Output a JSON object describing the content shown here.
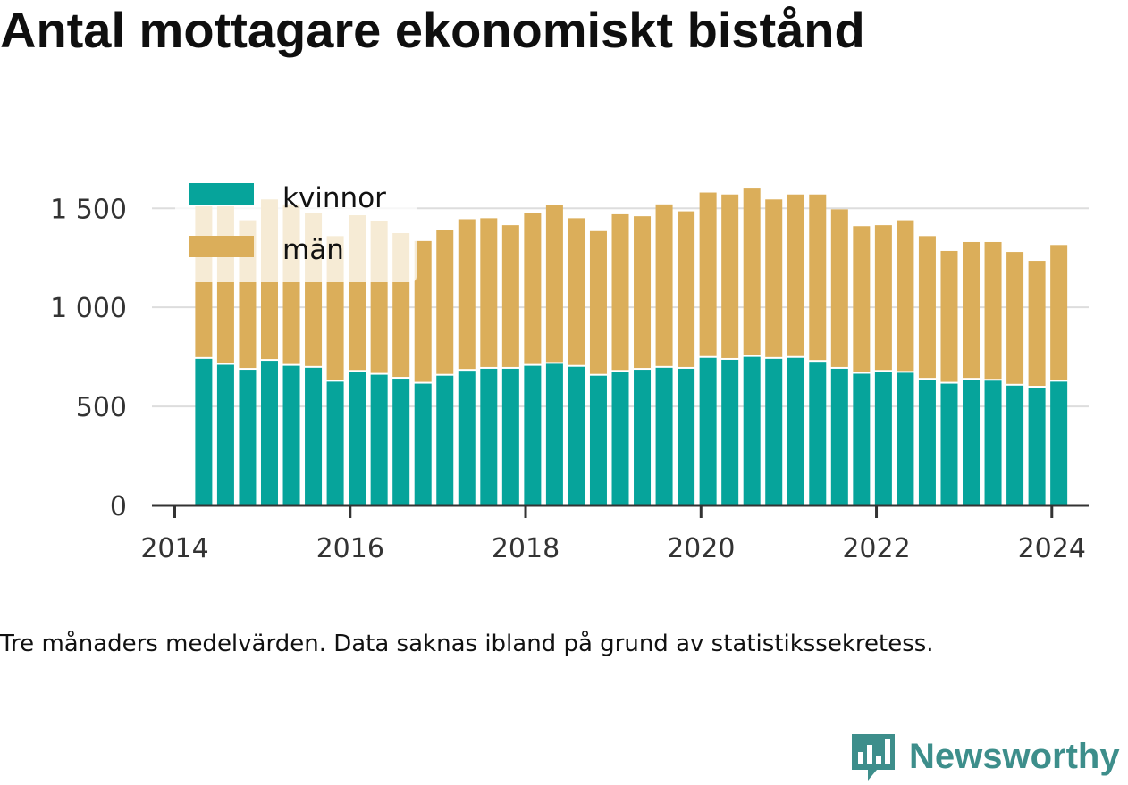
{
  "title": "Antal mottagare ekonomiskt bistånd",
  "note": "Tre månaders medelvärden. Data saknas ibland på grund av statistikssekretess.",
  "logo": {
    "text": "Newsworthy",
    "icon": "newsworthy-chart-bubble-icon"
  },
  "colors": {
    "kvinnor": "#06a49b",
    "man": "#dbae5a",
    "grid": "#dddddd",
    "axis": "#333333",
    "text": "#111111",
    "brand": "#3d8e8b"
  },
  "chart_data": {
    "type": "bar",
    "stacked": true,
    "x_unit": "year",
    "x": [
      2014.33,
      2014.58,
      2014.83,
      2015.08,
      2015.33,
      2015.58,
      2015.83,
      2016.08,
      2016.33,
      2016.58,
      2016.83,
      2017.08,
      2017.33,
      2017.58,
      2017.83,
      2018.08,
      2018.33,
      2018.58,
      2018.83,
      2019.08,
      2019.33,
      2019.58,
      2019.83,
      2020.08,
      2020.33,
      2020.58,
      2020.83,
      2021.08,
      2021.33,
      2021.58,
      2021.83,
      2022.08,
      2022.33,
      2022.58,
      2022.83,
      2023.08,
      2023.33,
      2023.58,
      2023.83,
      2024.08
    ],
    "series": [
      {
        "name": "kvinnor",
        "color": "#06a49b",
        "values": [
          740,
          710,
          685,
          730,
          705,
          695,
          625,
          675,
          660,
          640,
          615,
          655,
          680,
          690,
          690,
          705,
          715,
          700,
          655,
          675,
          685,
          695,
          690,
          745,
          735,
          750,
          740,
          745,
          725,
          690,
          665,
          675,
          670,
          635,
          615,
          635,
          630,
          605,
          595,
          625
        ]
      },
      {
        "name": "män",
        "color": "#dbae5a",
        "values": [
          770,
          800,
          755,
          815,
          815,
          780,
          735,
          790,
          775,
          735,
          720,
          735,
          765,
          760,
          725,
          770,
          800,
          750,
          730,
          795,
          775,
          825,
          795,
          835,
          835,
          850,
          805,
          825,
          845,
          805,
          745,
          740,
          770,
          725,
          670,
          695,
          700,
          675,
          640,
          690
        ]
      }
    ],
    "ylim": [
      0,
      1650
    ],
    "yticks": [
      0,
      500,
      1000,
      1500
    ],
    "ytick_labels": [
      "0",
      "500",
      "1 000",
      "1 500"
    ],
    "xlim": [
      2013.74,
      2024.42
    ],
    "xticks": [
      2014,
      2016,
      2018,
      2020,
      2022,
      2024
    ],
    "xtick_labels": [
      "2014",
      "2016",
      "2018",
      "2020",
      "2022",
      "2024"
    ],
    "legend": {
      "position": "top-left",
      "labels": [
        "kvinnor",
        "män"
      ]
    },
    "grid": "horizontal"
  }
}
